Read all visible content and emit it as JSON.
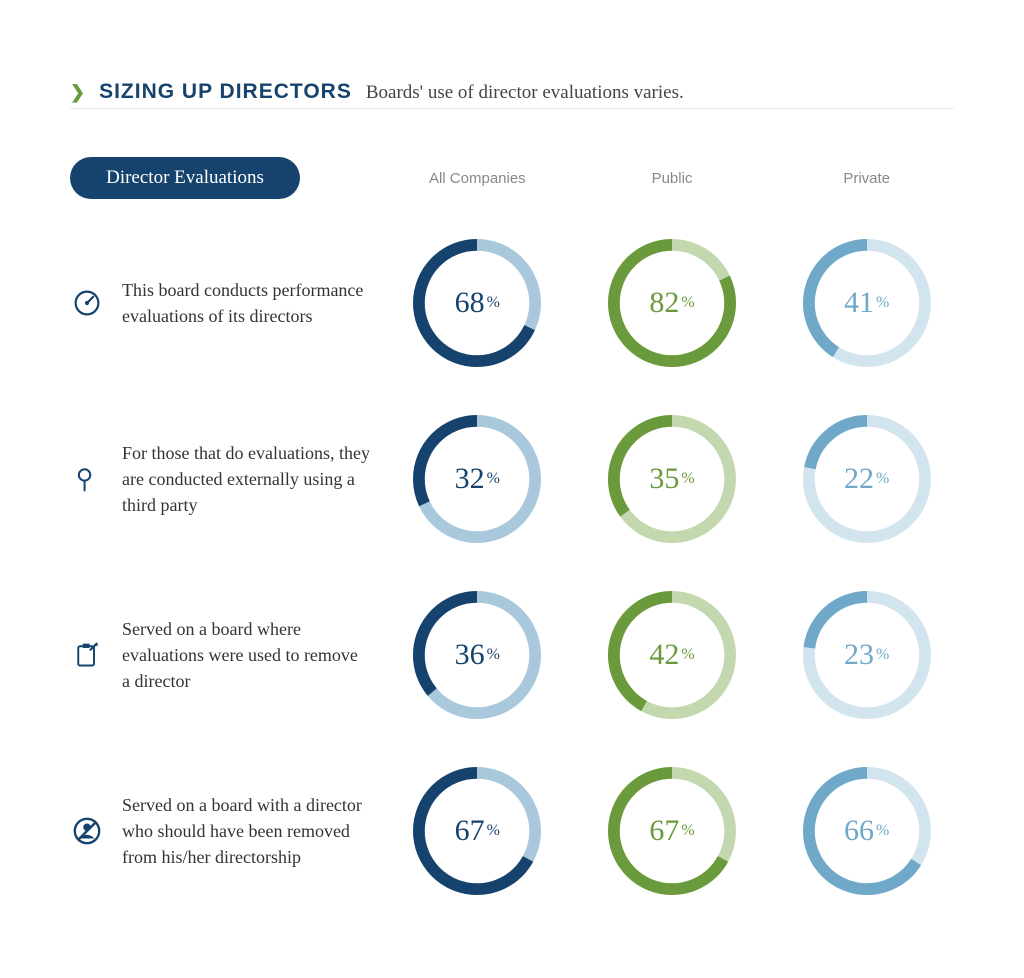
{
  "header": {
    "chevron": "❯",
    "title": "SIZING UP DIRECTORS",
    "subtitle": "Boards' use of director evaluations varies."
  },
  "pill_label": "Director Evaluations",
  "columns": [
    {
      "key": "all",
      "label": "All Companies",
      "fg": "#16436d",
      "bg": "#a9c8dc",
      "text": "#16436d"
    },
    {
      "key": "public",
      "label": "Public",
      "fg": "#6a9a3b",
      "bg": "#c4d8b0",
      "text": "#6a9a3b"
    },
    {
      "key": "private",
      "label": "Private",
      "fg": "#6fa8c9",
      "bg": "#d2e4ee",
      "text": "#6fa8c9"
    }
  ],
  "rows": [
    {
      "icon": "gauge",
      "label": "This board conducts performance evaluations of its directors",
      "values": {
        "all": 68,
        "public": 82,
        "private": 41
      }
    },
    {
      "icon": "magnifier",
      "label": "For those that do evaluations, they are conducted externally using a third party",
      "values": {
        "all": 32,
        "public": 35,
        "private": 22
      }
    },
    {
      "icon": "clipboard",
      "label": "Served on a board where evaluations were used to remove a director",
      "values": {
        "all": 36,
        "public": 42,
        "private": 23
      }
    },
    {
      "icon": "nouser",
      "label": "Served on a board with a director who should have been removed from his/her directorship",
      "values": {
        "all": 67,
        "public": 67,
        "private": 66
      }
    }
  ],
  "donut": {
    "outer_radius": 60,
    "stroke_width": 11,
    "start_angle_deg": 0,
    "background": "#ffffff",
    "pct_suffix": "%",
    "num_fontsize": 30,
    "sym_fontsize": 16
  }
}
